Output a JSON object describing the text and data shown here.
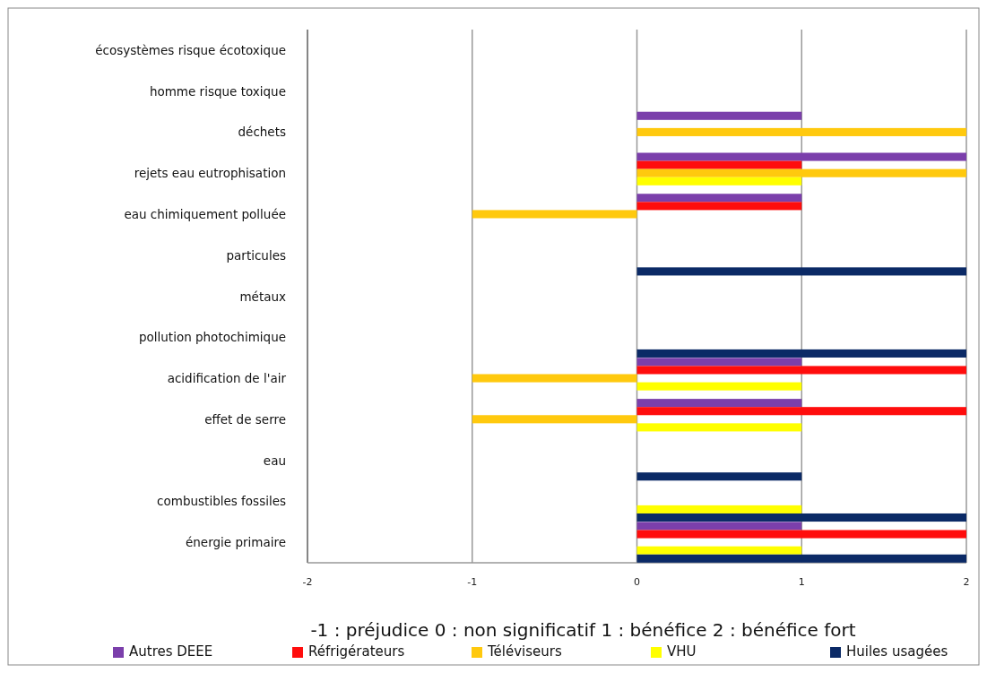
{
  "chart_data": {
    "type": "bar",
    "orientation": "horizontal",
    "categories": [
      "écosystèmes risque écotoxique",
      "homme risque toxique",
      "déchets",
      "rejets eau eutrophisation",
      "eau chimiquement  polluée",
      "particules",
      "métaux",
      "pollution photochimique",
      "acidification de l'air",
      "effet de serre",
      "eau",
      "combustibles fossiles",
      "énergie primaire"
    ],
    "series": [
      {
        "name": "Autres DEEE",
        "color": "#7b3fab",
        "values": [
          null,
          null,
          1,
          2,
          1,
          null,
          null,
          null,
          1,
          1,
          null,
          null,
          1
        ]
      },
      {
        "name": "Réfrigérateurs",
        "color": "#ff0d0d",
        "values": [
          null,
          null,
          null,
          1,
          1,
          null,
          null,
          null,
          2,
          2,
          null,
          null,
          2
        ]
      },
      {
        "name": "Téléviseurs",
        "color": "#ffc90e",
        "values": [
          null,
          null,
          2,
          2,
          -1,
          null,
          null,
          null,
          -1,
          -1,
          null,
          null,
          null
        ]
      },
      {
        "name": "VHU",
        "color": "#ffff00",
        "values": [
          null,
          null,
          null,
          1,
          null,
          null,
          null,
          null,
          1,
          1,
          null,
          1,
          1
        ]
      },
      {
        "name": "Huiles usagées",
        "color": "#0b2a66",
        "values": [
          null,
          null,
          null,
          null,
          null,
          2,
          null,
          2,
          null,
          null,
          1,
          2,
          2
        ]
      }
    ],
    "xlim": [
      -2,
      2
    ],
    "xticks": [
      -2,
      -1,
      0,
      1,
      2
    ],
    "grid": "x",
    "legend": "bottom",
    "annotations": [
      "-1 : préjudice    0 : non significatif    1 : bénéfice     2 : bénéfice fort"
    ]
  }
}
